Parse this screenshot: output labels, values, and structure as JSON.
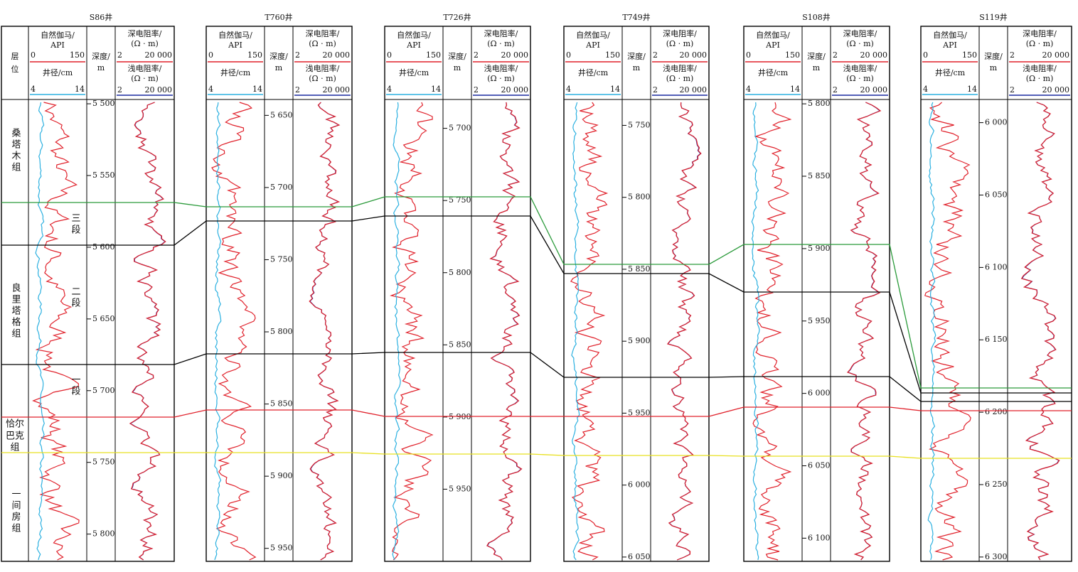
{
  "header": {
    "layer": [
      "层",
      "位"
    ],
    "gr_title": "自然伽马/",
    "gr_unit": "API",
    "gr_min": "0",
    "gr_max": "150",
    "cal_title": "井径/cm",
    "cal_min": "4",
    "cal_max": "14",
    "depth_title": "深度/",
    "depth_unit": "m",
    "deep_title": "深电阻率/",
    "res_unit": "(Ω · m)",
    "res_min": "2",
    "res_max": "20 000",
    "shallow_title": "浅电阻率/"
  },
  "formations": [
    "桑塔木组",
    "三段",
    "良里塔格组",
    "二段",
    "一段",
    "恰尔",
    "巴克",
    "组",
    "一间房组"
  ],
  "wells": [
    {
      "name": "S86井",
      "ylim": [
        5497,
        5819
      ],
      "depth_ticks": [
        {
          "value": 5500,
          "label": "5 500"
        },
        {
          "value": 5550,
          "label": "5 550"
        },
        {
          "value": 5600,
          "label": "5 600"
        },
        {
          "value": 5650,
          "label": "5 650"
        },
        {
          "value": 5700,
          "label": "5 700"
        },
        {
          "value": 5750,
          "label": "5 750"
        },
        {
          "value": 5800,
          "label": "5 800"
        }
      ]
    },
    {
      "name": "T760井",
      "ylim": [
        5639,
        5959
      ],
      "depth_ticks": [
        {
          "value": 5650,
          "label": "5 650"
        },
        {
          "value": 5700,
          "label": "5 700"
        },
        {
          "value": 5750,
          "label": "5 750"
        },
        {
          "value": 5800,
          "label": "5 800"
        },
        {
          "value": 5850,
          "label": "5 850"
        },
        {
          "value": 5900,
          "label": "5 900"
        },
        {
          "value": 5950,
          "label": "5 950"
        }
      ]
    },
    {
      "name": "T726井",
      "ylim": [
        5680,
        6000
      ],
      "depth_ticks": [
        {
          "value": 5700,
          "label": "5 700"
        },
        {
          "value": 5750,
          "label": "5 750"
        },
        {
          "value": 5800,
          "label": "5 800"
        },
        {
          "value": 5850,
          "label": "5 850"
        },
        {
          "value": 5900,
          "label": "5 900"
        },
        {
          "value": 5950,
          "label": "5 950"
        }
      ]
    },
    {
      "name": "T749井",
      "ylim": [
        5732,
        6053
      ],
      "depth_ticks": [
        {
          "value": 5750,
          "label": "5 750"
        },
        {
          "value": 5800,
          "label": "5 800"
        },
        {
          "value": 5850,
          "label": "5 850"
        },
        {
          "value": 5900,
          "label": "5 900"
        },
        {
          "value": 5950,
          "label": "5 950"
        },
        {
          "value": 6000,
          "label": "6 000"
        },
        {
          "value": 6050,
          "label": "6 050"
        }
      ]
    },
    {
      "name": "S108井",
      "ylim": [
        5797,
        6116
      ],
      "depth_ticks": [
        {
          "value": 5800,
          "label": "5 800"
        },
        {
          "value": 5850,
          "label": "5 850"
        },
        {
          "value": 5900,
          "label": "5 900"
        },
        {
          "value": 5950,
          "label": "5 950"
        },
        {
          "value": 6000,
          "label": "6 000"
        },
        {
          "value": 6050,
          "label": "6 050"
        },
        {
          "value": 6100,
          "label": "6 100"
        }
      ]
    },
    {
      "name": "S119井",
      "ylim": [
        5984,
        6303
      ],
      "depth_ticks": [
        {
          "value": 6000,
          "label": "6 000"
        },
        {
          "value": 6050,
          "label": "6 050"
        },
        {
          "value": 6100,
          "label": "6 100"
        },
        {
          "value": 6150,
          "label": "6 150"
        },
        {
          "value": 6200,
          "label": "6 200"
        },
        {
          "value": 6250,
          "label": "6 250"
        },
        {
          "value": 6300,
          "label": "6 300"
        }
      ]
    }
  ]
}
